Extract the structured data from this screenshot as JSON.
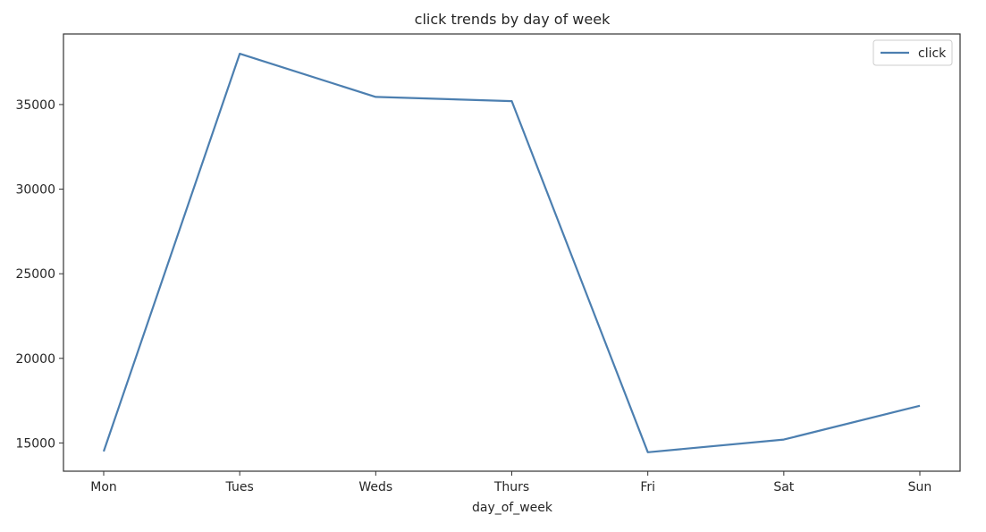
{
  "chart_data": {
    "type": "line",
    "title": "click trends by day of week",
    "xlabel": "day_of_week",
    "ylabel": "",
    "categories": [
      "Mon",
      "Tues",
      "Weds",
      "Thurs",
      "Fri",
      "Sat",
      "Sun"
    ],
    "series": [
      {
        "name": "click",
        "values": [
          14500,
          38000,
          35450,
          35200,
          14450,
          15200,
          17200
        ],
        "color": "#4c7fb0"
      }
    ],
    "yticks": [
      15000,
      20000,
      25000,
      30000,
      35000
    ],
    "ytick_labels": [
      "15000",
      "20000",
      "25000",
      "30000",
      "35000"
    ],
    "ylim": [
      13330,
      39170
    ],
    "grid": false,
    "legend_position": "top-right"
  }
}
